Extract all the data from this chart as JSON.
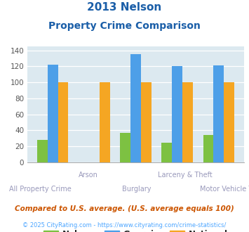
{
  "title_line1": "2013 Nelson",
  "title_line2": "Property Crime Comparison",
  "categories": [
    "All Property Crime",
    "Arson",
    "Burglary",
    "Larceny & Theft",
    "Motor Vehicle Theft"
  ],
  "nelson": [
    28,
    0,
    37,
    25,
    34
  ],
  "georgia": [
    122,
    0,
    135,
    120,
    121
  ],
  "national": [
    100,
    100,
    100,
    100,
    100
  ],
  "bar_colors": {
    "nelson": "#7dc142",
    "georgia": "#4d9fe8",
    "national": "#f5a623"
  },
  "ylim": [
    0,
    145
  ],
  "yticks": [
    0,
    20,
    40,
    60,
    80,
    100,
    120,
    140
  ],
  "bg_color": "#dce9f0",
  "title_color": "#1a5ea8",
  "xlabel_color": "#9999bb",
  "legend_label_color": "#222222",
  "footnote1": "Compared to U.S. average. (U.S. average equals 100)",
  "footnote2": "© 2025 CityRating.com - https://www.cityrating.com/crime-statistics/",
  "footnote1_color": "#cc5500",
  "footnote2_color": "#4da6ff",
  "upper_labels": {
    "1": "Arson",
    "3": "Larceny & Theft"
  },
  "lower_labels": {
    "0": "All Property Crime",
    "2": "Burglary",
    "4": "Motor Vehicle Theft"
  }
}
